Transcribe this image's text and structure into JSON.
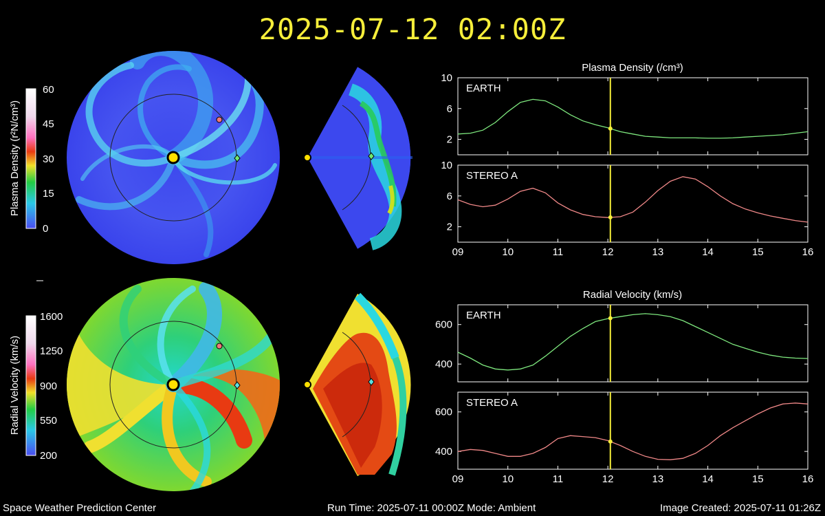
{
  "header": {
    "title": "2025-07-12 02:00Z"
  },
  "footer": {
    "center": "Space Weather Prediction Center",
    "run_info": "Run Time: 2025-07-11 00:00Z  Mode: Ambient",
    "created": "Image Created: 2025-07-11 01:26Z"
  },
  "maps": {
    "density_colorbar": {
      "label": "Plasma Density (r²N/cm³)",
      "ticks": [
        "60",
        "45",
        "30",
        "15",
        "0"
      ]
    },
    "velocity_colorbar": {
      "label": "Radial Velocity (km/s)",
      "ticks": [
        "1600",
        "1250",
        "900",
        "550",
        "200"
      ]
    },
    "colors": {
      "low": "#4a4cf0",
      "mid_low": "#2ac8e8",
      "mid": "#22cc44",
      "mid_high": "#f0e028",
      "high": "#e83a12",
      "top": "#ff70c0",
      "earth_marker": "#70e870",
      "stereo_marker": "#f07878",
      "sun": "#ffe000"
    }
  },
  "chart_data": [
    {
      "type": "line",
      "title": "Plasma Density (/cm³)",
      "panel": "EARTH",
      "x": [
        9.0,
        9.25,
        9.5,
        9.75,
        10.0,
        10.25,
        10.5,
        10.75,
        11.0,
        11.25,
        11.5,
        11.75,
        12.0,
        12.25,
        12.5,
        12.75,
        13.0,
        13.25,
        13.5,
        13.75,
        14.0,
        14.25,
        14.5,
        14.75,
        15.0,
        15.25,
        15.5,
        15.75,
        16.0
      ],
      "series": [
        {
          "name": "EARTH",
          "color": "#7ee87e",
          "values": [
            2.7,
            2.8,
            3.2,
            4.2,
            5.6,
            6.8,
            7.2,
            7.0,
            6.2,
            5.2,
            4.4,
            3.9,
            3.5,
            3.0,
            2.7,
            2.4,
            2.3,
            2.2,
            2.2,
            2.2,
            2.15,
            2.15,
            2.2,
            2.3,
            2.4,
            2.5,
            2.6,
            2.8,
            3.0
          ]
        }
      ],
      "tick_labels_y": [
        "10",
        "6",
        "2"
      ],
      "ylim": [
        0,
        10
      ],
      "xlim": [
        9,
        16
      ],
      "current_time": 12.05,
      "grid": false
    },
    {
      "type": "line",
      "title": "",
      "panel": "STEREO A",
      "x": [
        9.0,
        9.25,
        9.5,
        9.75,
        10.0,
        10.25,
        10.5,
        10.75,
        11.0,
        11.25,
        11.5,
        11.75,
        12.0,
        12.25,
        12.5,
        12.75,
        13.0,
        13.25,
        13.5,
        13.75,
        14.0,
        14.25,
        14.5,
        14.75,
        15.0,
        15.25,
        15.5,
        15.75,
        16.0
      ],
      "series": [
        {
          "name": "STEREO A",
          "color": "#f08888",
          "values": [
            5.5,
            4.9,
            4.6,
            4.8,
            5.6,
            6.6,
            7.0,
            6.4,
            5.1,
            4.2,
            3.6,
            3.3,
            3.2,
            3.3,
            3.9,
            5.2,
            6.7,
            7.9,
            8.5,
            8.2,
            7.2,
            6.0,
            5.0,
            4.3,
            3.8,
            3.4,
            3.1,
            2.8,
            2.6
          ]
        }
      ],
      "tick_labels_y": [
        "10",
        "6",
        "2"
      ],
      "tick_labels_x": [
        "09",
        "10",
        "11",
        "12",
        "13",
        "14",
        "15",
        "16"
      ],
      "ylim": [
        0,
        10
      ],
      "xlim": [
        9,
        16
      ],
      "current_time": 12.05,
      "grid": false
    },
    {
      "type": "line",
      "title": "Radial Velocity (km/s)",
      "panel": "EARTH",
      "x": [
        9.0,
        9.25,
        9.5,
        9.75,
        10.0,
        10.25,
        10.5,
        10.75,
        11.0,
        11.25,
        11.5,
        11.75,
        12.0,
        12.25,
        12.5,
        12.75,
        13.0,
        13.25,
        13.5,
        13.75,
        14.0,
        14.25,
        14.5,
        14.75,
        15.0,
        15.25,
        15.5,
        15.75,
        16.0
      ],
      "series": [
        {
          "name": "EARTH",
          "color": "#7ee87e",
          "values": [
            460,
            430,
            395,
            375,
            370,
            375,
            395,
            440,
            490,
            540,
            580,
            615,
            630,
            640,
            650,
            655,
            650,
            640,
            620,
            590,
            560,
            530,
            500,
            480,
            460,
            445,
            435,
            430,
            428
          ]
        }
      ],
      "tick_labels_y": [
        "600",
        "400"
      ],
      "ylim": [
        310,
        700
      ],
      "xlim": [
        9,
        16
      ],
      "current_time": 12.05,
      "grid": false
    },
    {
      "type": "line",
      "title": "",
      "panel": "STEREO A",
      "x": [
        9.0,
        9.25,
        9.5,
        9.75,
        10.0,
        10.25,
        10.5,
        10.75,
        11.0,
        11.25,
        11.5,
        11.75,
        12.0,
        12.25,
        12.5,
        12.75,
        13.0,
        13.25,
        13.5,
        13.75,
        14.0,
        14.25,
        14.5,
        14.75,
        15.0,
        15.25,
        15.5,
        15.75,
        16.0
      ],
      "series": [
        {
          "name": "STEREO A",
          "color": "#f08888",
          "values": [
            400,
            410,
            405,
            390,
            375,
            375,
            390,
            420,
            465,
            480,
            475,
            470,
            455,
            430,
            400,
            375,
            360,
            358,
            365,
            390,
            430,
            480,
            520,
            555,
            590,
            620,
            640,
            645,
            640
          ]
        }
      ],
      "tick_labels_y": [
        "600",
        "400"
      ],
      "tick_labels_x": [
        "09",
        "10",
        "11",
        "12",
        "13",
        "14",
        "15",
        "16"
      ],
      "ylim": [
        310,
        700
      ],
      "xlim": [
        9,
        16
      ],
      "current_time": 12.05,
      "grid": false
    }
  ]
}
